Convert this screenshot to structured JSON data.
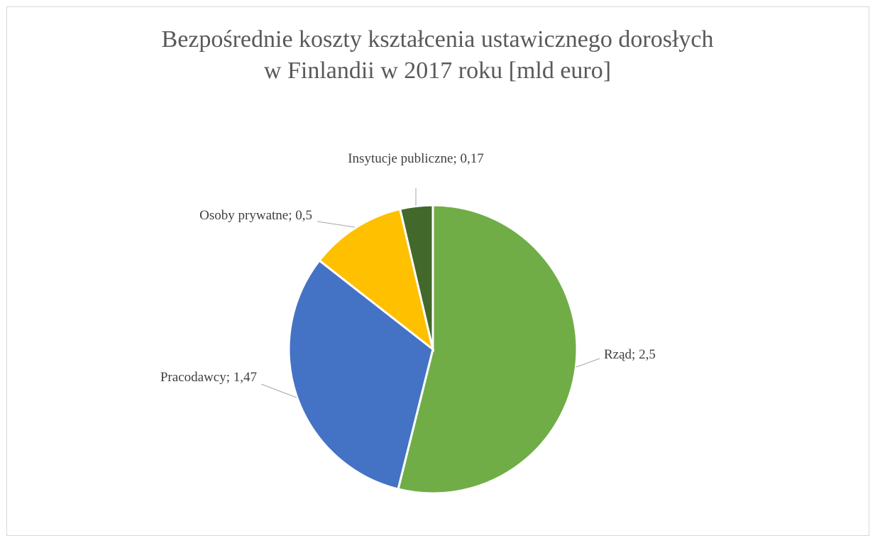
{
  "chart_data": {
    "type": "pie",
    "title": [
      "Bezpośrednie koszty kształcenia ustawicznego dorosłych",
      "w Finlandii w 2017 roku [mld euro]"
    ],
    "values": [
      2.5,
      1.47,
      0.5,
      0.17
    ],
    "value_labels": [
      "Rząd; 2,5",
      "Pracodawcy; 1,47",
      "Osoby prywatne; 0,5",
      "Insytucje publiczne; 0,17"
    ],
    "colors": [
      "#70ad47",
      "#4472c4",
      "#ffc000",
      "#43682b"
    ]
  }
}
